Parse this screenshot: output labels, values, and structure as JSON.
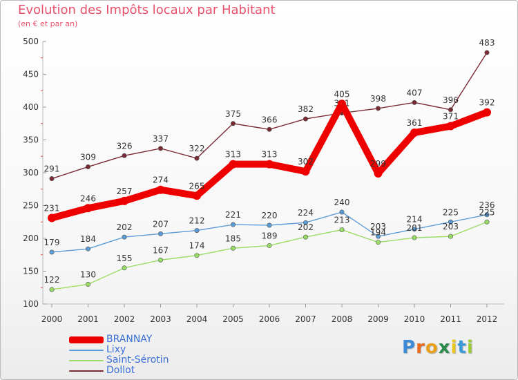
{
  "chart_data": {
    "type": "line",
    "title": "Evolution des Impôts locaux par Habitant",
    "subtitle": "(en € et par an)",
    "x": [
      "2000",
      "2001",
      "2002",
      "2003",
      "2004",
      "2005",
      "2006",
      "2007",
      "2008",
      "2009",
      "2010",
      "2011",
      "2012"
    ],
    "ylim": [
      100,
      500
    ],
    "yticks": [
      100,
      150,
      200,
      250,
      300,
      350,
      400,
      450,
      500
    ],
    "grid": false,
    "legend_position": "bottom-left",
    "series": [
      {
        "name": "BRANNAY",
        "color": "#ee0000",
        "values": [
          231,
          246,
          257,
          274,
          265,
          313,
          313,
          302,
          405,
          299,
          361,
          371,
          392
        ]
      },
      {
        "name": "Lixy",
        "color": "#5b9bd5",
        "values": [
          179,
          184,
          202,
          207,
          212,
          221,
          220,
          224,
          240,
          203,
          214,
          225,
          236
        ]
      },
      {
        "name": "Saint-Sérotin",
        "color": "#99dd66",
        "values": [
          122,
          130,
          155,
          167,
          174,
          185,
          189,
          202,
          213,
          194,
          201,
          203,
          225
        ]
      },
      {
        "name": "Dollot",
        "color": "#7a2a35",
        "values": [
          291,
          309,
          326,
          337,
          322,
          375,
          366,
          382,
          391,
          398,
          407,
          396,
          483
        ]
      }
    ]
  },
  "logo": {
    "letters": [
      "P",
      "r",
      "o",
      "x",
      "i",
      "t",
      "i"
    ],
    "colors": [
      "#3a8ad8",
      "#e86a1a",
      "#e8a01a",
      "#2a8a4a",
      "#e8c81a",
      "#3a9ad8",
      "#99cc33"
    ]
  }
}
